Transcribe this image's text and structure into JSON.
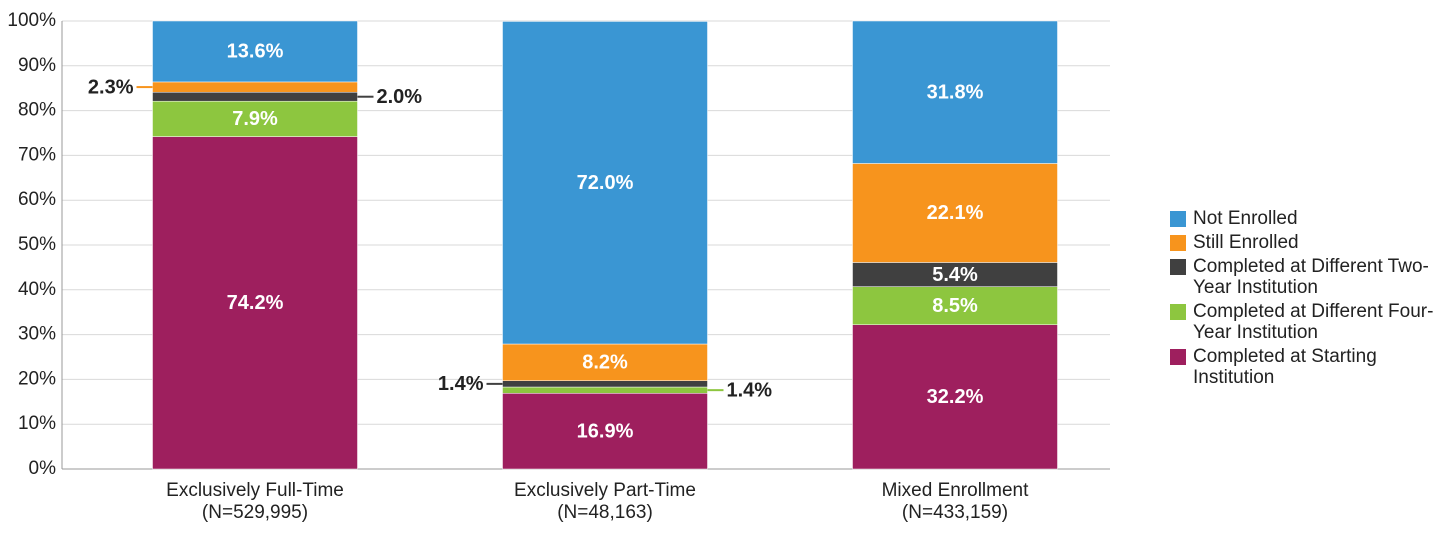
{
  "chart_data": {
    "type": "stacked_bar",
    "categories": [
      "Exclusively Full-Time",
      "Exclusively Part-Time",
      "Mixed Enrollment"
    ],
    "category_sublabels": [
      "(N=529,995)",
      "(N=48,163)",
      "(N=433,159)"
    ],
    "series": [
      {
        "name": "Completed at Starting Institution",
        "color": "#9e1f5e",
        "values": [
          74.2,
          16.9,
          32.2
        ],
        "value_labels": [
          "74.2%",
          "16.9%",
          "32.2%"
        ]
      },
      {
        "name": "Completed at Different Four-Year Institution",
        "color": "#8dc63f",
        "values": [
          7.9,
          1.4,
          8.5
        ],
        "value_labels": [
          "7.9%",
          "1.4%",
          "8.5%"
        ]
      },
      {
        "name": "Completed at Different Two-Year Institution",
        "color": "#404040",
        "values": [
          2.0,
          1.4,
          5.4
        ],
        "value_labels": [
          "2.0%",
          "1.4%",
          "5.4%"
        ]
      },
      {
        "name": "Still Enrolled",
        "color": "#f7941d",
        "values": [
          2.3,
          8.2,
          22.1
        ],
        "value_labels": [
          "2.3%",
          "8.2%",
          "22.1%"
        ]
      },
      {
        "name": "Not Enrolled",
        "color": "#3a96d3",
        "values": [
          13.6,
          72.0,
          31.8
        ],
        "value_labels": [
          "13.6%",
          "72.0%",
          "31.8%"
        ]
      }
    ],
    "ylim": [
      0,
      100
    ],
    "yticks": [
      {
        "value": 0,
        "label": "0%"
      },
      {
        "value": 10,
        "label": "10%"
      },
      {
        "value": 20,
        "label": "20%"
      },
      {
        "value": 30,
        "label": "30%"
      },
      {
        "value": 40,
        "label": "40%"
      },
      {
        "value": 50,
        "label": "50%"
      },
      {
        "value": 60,
        "label": "60%"
      },
      {
        "value": 70,
        "label": "70%"
      },
      {
        "value": 80,
        "label": "80%"
      },
      {
        "value": 90,
        "label": "90%"
      },
      {
        "value": 100,
        "label": "100%"
      }
    ],
    "grid": true,
    "legend": "right",
    "legend_order": "reversed"
  }
}
